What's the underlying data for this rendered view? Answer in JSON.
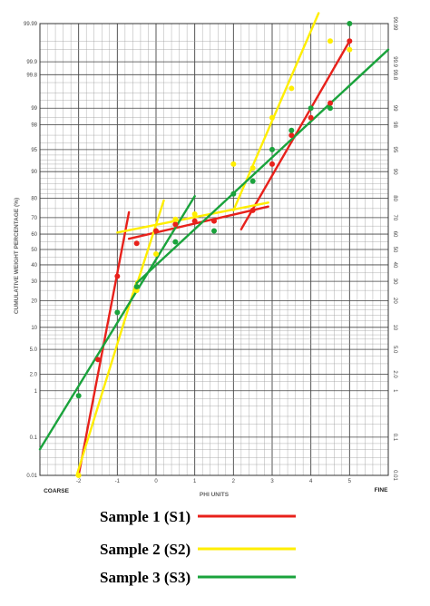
{
  "chart_data": {
    "type": "scatter",
    "title": "",
    "xlabel": "PHI UNITS",
    "ylabel": "CUMULATIVE WEIGHT PERCENTAGE (%)",
    "x_end_labels": {
      "left": "COARSE",
      "right": "FINE"
    },
    "xlim": [
      -3,
      6
    ],
    "ylim": [
      0.01,
      99.99
    ],
    "y_scale": "probability",
    "x_ticks": [
      "-2",
      "-1",
      "0",
      "1",
      "2",
      "3",
      "4",
      "5"
    ],
    "x_tick_values": [
      -2,
      -1,
      0,
      1,
      2,
      3,
      4,
      5
    ],
    "y_ticks": [
      "0.01",
      "0.1",
      "1",
      "2.0",
      "5.0",
      "10",
      "20",
      "30",
      "40",
      "50",
      "60",
      "70",
      "80",
      "90",
      "95",
      "98",
      "99",
      "99.8",
      "99.9",
      "99.99"
    ],
    "y_tick_values": [
      0.01,
      0.1,
      1,
      2,
      5,
      10,
      20,
      30,
      40,
      50,
      60,
      70,
      80,
      90,
      95,
      98,
      99,
      99.8,
      99.9,
      99.99
    ],
    "grid": true,
    "series": [
      {
        "name": "Sample 1 (S1)",
        "color": "#e8211b",
        "points": [
          [
            -1.5,
            3.5
          ],
          [
            -1.0,
            33
          ],
          [
            -0.5,
            54
          ],
          [
            0.0,
            62
          ],
          [
            0.5,
            66
          ],
          [
            1.0,
            68
          ],
          [
            1.5,
            68
          ],
          [
            2.5,
            74
          ],
          [
            3.0,
            92
          ],
          [
            3.5,
            97
          ],
          [
            4.0,
            98.5
          ],
          [
            4.5,
            99.2
          ],
          [
            5.0,
            99.97
          ]
        ],
        "fit_lines": [
          [
            [
              -2.0,
              0.01
            ],
            [
              -0.7,
              73
            ]
          ],
          [
            [
              -0.7,
              57
            ],
            [
              2.9,
              76
            ]
          ],
          [
            [
              2.2,
              63
            ],
            [
              5.0,
              99.97
            ]
          ]
        ]
      },
      {
        "name": "Sample 2 (S2)",
        "color": "#ffee00",
        "points": [
          [
            -2.0,
            0.01
          ],
          [
            -0.5,
            25
          ],
          [
            0.0,
            47
          ],
          [
            0.5,
            69
          ],
          [
            1.0,
            72
          ],
          [
            2.0,
            92
          ],
          [
            2.5,
            91
          ],
          [
            3.0,
            98.5
          ],
          [
            3.5,
            99.6
          ],
          [
            4.5,
            99.97
          ],
          [
            5.0,
            99.95
          ]
        ],
        "fit_lines": [
          [
            [
              -2.05,
              0.01
            ],
            [
              -0.5,
              30
            ]
          ],
          [
            [
              -1.0,
              61
            ],
            [
              2.9,
              78
            ]
          ],
          [
            [
              -0.5,
              28
            ],
            [
              0.2,
              79
            ]
          ],
          [
            [
              2.0,
              74
            ],
            [
              4.2,
              99.995
            ]
          ]
        ]
      },
      {
        "name": "Sample 3 (S3)",
        "color": "#1aa33c",
        "points": [
          [
            -2.0,
            0.8
          ],
          [
            -1.0,
            15
          ],
          [
            -0.5,
            27
          ],
          [
            0.5,
            55
          ],
          [
            1.5,
            62
          ],
          [
            2.0,
            82
          ],
          [
            2.5,
            87
          ],
          [
            3.0,
            95
          ],
          [
            3.5,
            97.5
          ],
          [
            4.0,
            99
          ],
          [
            4.5,
            99
          ],
          [
            5.0,
            99.99
          ]
        ],
        "fit_lines": [
          [
            [
              -3.0,
              0.05
            ],
            [
              1.0,
              81
            ]
          ],
          [
            [
              -0.5,
              29
            ],
            [
              6.0,
              99.95
            ]
          ]
        ]
      }
    ],
    "legend": {
      "position": "bottom-center",
      "entries": [
        "Sample 1 (S1)",
        "Sample 2 (S2)",
        "Sample 3 (S3)"
      ]
    }
  }
}
